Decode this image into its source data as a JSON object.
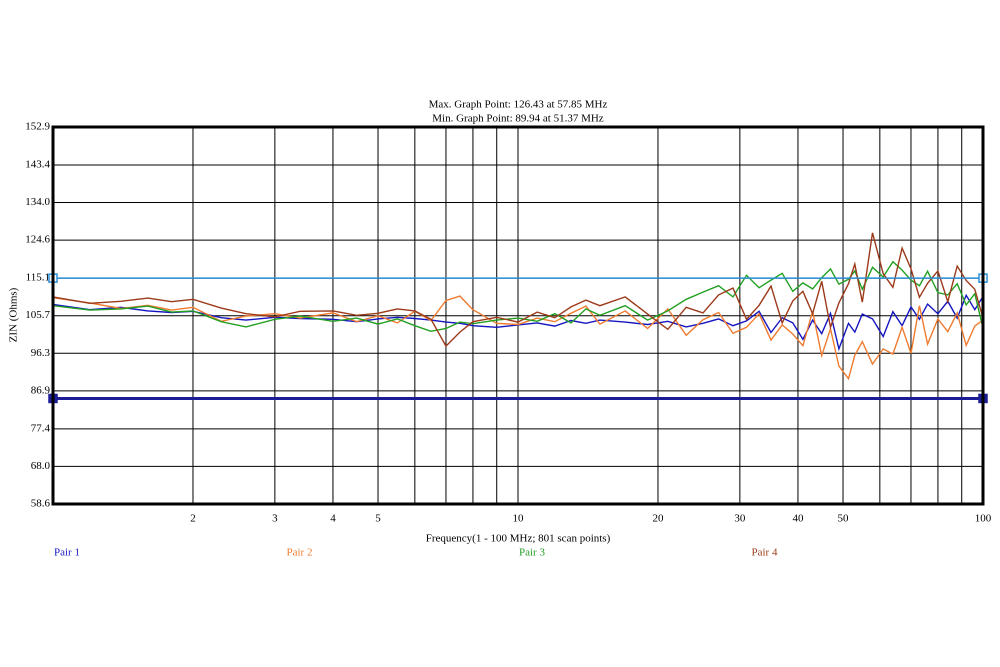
{
  "chart_data": {
    "type": "line",
    "title": "Max. Graph Point: 126.43 at 57.85 MHz",
    "subtitle": "Min. Graph Point: 89.94 at 51.37 MHz",
    "x_label": "Frequency(1 - 100 MHz; 801 scan points)",
    "y_label": "ZIN (Ohms)",
    "x_scale": "log",
    "grid": true,
    "legend": "bottom",
    "xlim": [
      1,
      100
    ],
    "ylim": [
      58.6,
      152.9
    ],
    "xticks": [
      2,
      3,
      4,
      5,
      10,
      20,
      30,
      40,
      50,
      100
    ],
    "minor_xticks": [
      6,
      7,
      8,
      9,
      60,
      70,
      80,
      90
    ],
    "yticks": [
      58.6,
      {
        "value": 68,
        "label": "68.0"
      },
      77.4,
      86.9,
      96.3,
      105.7,
      115.1,
      124.6,
      {
        "value": 134,
        "label": "134.0"
      },
      143.4,
      152.9
    ],
    "limit_lines": [
      {
        "value": 115.1,
        "color": "#2a8fd8"
      },
      {
        "value": 85,
        "color": "#1c1c96"
      }
    ],
    "x": [
      1,
      1.2,
      1.4,
      1.6,
      1.8,
      2,
      2.3,
      2.6,
      3,
      3.4,
      4,
      4.5,
      5,
      5.5,
      6,
      6.5,
      7,
      7.5,
      8,
      9,
      10,
      11,
      12,
      13,
      14,
      15,
      17,
      19,
      21,
      23,
      25,
      27,
      29,
      31,
      33,
      35,
      37,
      39,
      41,
      43,
      45,
      47,
      49,
      51.37,
      53,
      55,
      57.85,
      61,
      64,
      67,
      70,
      73,
      76,
      80,
      84,
      88,
      92,
      96,
      100
    ],
    "series": [
      {
        "name": "Pair 1",
        "color": "#1515c0",
        "values": [
          108.5,
          107.2,
          107.8,
          106.9,
          106.5,
          106.8,
          105.2,
          104.6,
          105.3,
          105.0,
          104.8,
          104.2,
          104.9,
          105.3,
          105.0,
          104.6,
          104.1,
          103.8,
          103.2,
          102.8,
          103.4,
          103.9,
          103.1,
          104.5,
          103.8,
          104.6,
          104.1,
          103.5,
          104.3,
          102.9,
          103.8,
          104.9,
          103.2,
          104.4,
          106.8,
          101.5,
          105.2,
          103.9,
          99.8,
          104.6,
          101.2,
          106.3,
          97.4,
          103.8,
          101.6,
          106.1,
          104.9,
          100.5,
          106.7,
          103.2,
          107.9,
          104.8,
          108.6,
          106.2,
          109.3,
          105.1,
          110.8,
          107.2,
          110.5
        ]
      },
      {
        "name": "Pair 2",
        "color": "#ee7b30",
        "values": [
          110.2,
          108.9,
          107.5,
          108.3,
          107.1,
          107.8,
          104.3,
          105.6,
          106.2,
          105.1,
          106.4,
          104.2,
          105.7,
          103.9,
          106.8,
          104.5,
          109.5,
          110.6,
          107.2,
          103.8,
          103.5,
          105.1,
          104.2,
          106.3,
          108.1,
          103.6,
          106.9,
          102.5,
          107.4,
          100.8,
          104.7,
          106.5,
          101.3,
          102.8,
          106.2,
          99.6,
          103.4,
          101.1,
          98.2,
          106.8,
          95.7,
          102.4,
          93.1,
          89.94,
          95.8,
          99.2,
          93.6,
          97.4,
          96.1,
          102.8,
          96.3,
          108.2,
          98.6,
          104.9,
          101.7,
          106.4,
          98.3,
          103.1,
          104.6
        ]
      },
      {
        "name": "Pair 3",
        "color": "#22a022",
        "values": [
          108.2,
          107.1,
          107.4,
          108.1,
          106.6,
          106.9,
          104.2,
          102.9,
          104.8,
          105.6,
          104.3,
          105.1,
          103.6,
          104.9,
          103.2,
          101.8,
          102.5,
          104.1,
          103.7,
          104.6,
          105.1,
          104.3,
          106.2,
          103.9,
          107.4,
          105.8,
          108.2,
          104.6,
          106.9,
          109.8,
          111.6,
          113.2,
          110.4,
          115.8,
          112.7,
          114.6,
          116.3,
          111.8,
          113.9,
          112.4,
          115.2,
          117.4,
          113.6,
          114.8,
          116.9,
          112.3,
          117.8,
          115.4,
          119.2,
          117.1,
          114.6,
          113.2,
          116.8,
          111.5,
          110.9,
          113.7,
          108.4,
          111.2,
          102.6
        ]
      },
      {
        "name": "Pair 4",
        "color": "#9c3a1a",
        "values": [
          110.4,
          108.8,
          109.3,
          110.1,
          109.2,
          109.8,
          107.6,
          106.2,
          105.4,
          106.8,
          106.9,
          105.8,
          106.3,
          107.4,
          106.9,
          104.8,
          98.1,
          101.6,
          104.2,
          105.3,
          104.1,
          106.6,
          105.2,
          107.9,
          109.6,
          108.2,
          110.4,
          106.1,
          102.3,
          107.8,
          106.4,
          110.9,
          112.6,
          104.8,
          108.3,
          113.1,
          103.9,
          109.4,
          111.8,
          106.2,
          114.3,
          102.8,
          108.9,
          113.7,
          118.6,
          109.1,
          126.43,
          116.2,
          112.8,
          122.6,
          117.4,
          110.3,
          113.8,
          116.9,
          109.2,
          118.1,
          114.5,
          112.3,
          105.1
        ]
      }
    ]
  }
}
